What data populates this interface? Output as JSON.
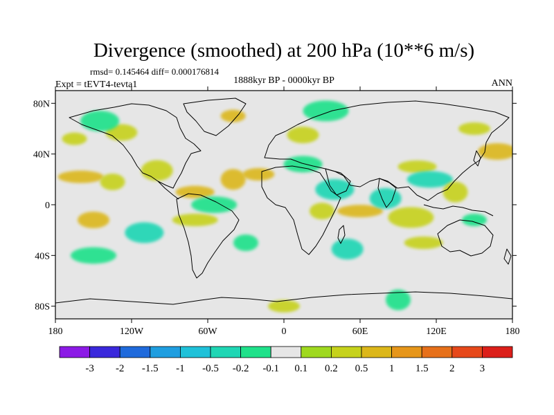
{
  "chart_data": {
    "type": "heatmap",
    "title": "Divergence (smoothed) at 200 hPa (10**6 m/s)",
    "stats_text": "rmsd= 0.145464  diff= 0.000176814",
    "left_label": "Expt = tEVT4-tevta1",
    "center_label": "1888kyr BP - 0000kyr BP",
    "right_label": "ANN",
    "x_range": [
      -180,
      180
    ],
    "y_range": [
      -90,
      90
    ],
    "x_ticks": [
      {
        "value": -180,
        "label": "180"
      },
      {
        "value": -120,
        "label": "120W"
      },
      {
        "value": -60,
        "label": "60W"
      },
      {
        "value": 0,
        "label": "0"
      },
      {
        "value": 60,
        "label": "60E"
      },
      {
        "value": 120,
        "label": "120E"
      },
      {
        "value": 180,
        "label": "180"
      }
    ],
    "y_ticks": [
      {
        "value": 80,
        "label": "80N"
      },
      {
        "value": 40,
        "label": "40N"
      },
      {
        "value": 0,
        "label": "0"
      },
      {
        "value": -40,
        "label": "40S"
      },
      {
        "value": -80,
        "label": "80S"
      }
    ],
    "colorbar": {
      "colors": [
        "#8c1ae6",
        "#3a28dc",
        "#1f6adc",
        "#1f9ee0",
        "#1fc1d9",
        "#1fd6b4",
        "#1fe18a",
        "#e6e6e6",
        "#9fd91f",
        "#c6d21c",
        "#dcb71a",
        "#e6961a",
        "#e6701a",
        "#e6481a",
        "#dc1f1a"
      ],
      "labels": [
        "-3",
        "-2",
        "-1.5",
        "-1",
        "-0.5",
        "-0.2",
        "-0.1",
        "0.1",
        "0.2",
        "0.5",
        "1",
        "1.5",
        "2",
        "3"
      ]
    },
    "anomalies": [
      {
        "lon": -165,
        "lat": 52,
        "value": 0.2
      },
      {
        "lon": -128,
        "lat": 57,
        "value": 0.2
      },
      {
        "lon": -145,
        "lat": 66,
        "value": -0.15
      },
      {
        "lon": -160,
        "lat": 22,
        "value": 0.5
      },
      {
        "lon": -135,
        "lat": 18,
        "value": 0.3
      },
      {
        "lon": -100,
        "lat": 27,
        "value": 0.2
      },
      {
        "lon": -70,
        "lat": 10,
        "value": 0.5
      },
      {
        "lon": -55,
        "lat": 0,
        "value": -0.2
      },
      {
        "lon": -40,
        "lat": 20,
        "value": 0.5
      },
      {
        "lon": -20,
        "lat": 24,
        "value": 0.5
      },
      {
        "lon": 15,
        "lat": 32,
        "value": -0.2
      },
      {
        "lon": 33,
        "lat": 74,
        "value": -0.2
      },
      {
        "lon": -40,
        "lat": 70,
        "value": 0.5
      },
      {
        "lon": 15,
        "lat": 55,
        "value": 0.2
      },
      {
        "lon": 40,
        "lat": 12,
        "value": -0.5
      },
      {
        "lon": 60,
        "lat": -5,
        "value": 0.5
      },
      {
        "lon": 30,
        "lat": -5,
        "value": 0.2
      },
      {
        "lon": 80,
        "lat": 5,
        "value": -0.5
      },
      {
        "lon": 105,
        "lat": 30,
        "value": 0.2
      },
      {
        "lon": 115,
        "lat": 20,
        "value": -0.3
      },
      {
        "lon": 135,
        "lat": 10,
        "value": 0.2
      },
      {
        "lon": 150,
        "lat": 60,
        "value": 0.3
      },
      {
        "lon": 168,
        "lat": 42,
        "value": 0.5
      },
      {
        "lon": 100,
        "lat": -10,
        "value": 0.3
      },
      {
        "lon": 150,
        "lat": -12,
        "value": -0.2
      },
      {
        "lon": -150,
        "lat": -12,
        "value": 0.5
      },
      {
        "lon": -110,
        "lat": -22,
        "value": -0.5
      },
      {
        "lon": -70,
        "lat": -12,
        "value": 0.2
      },
      {
        "lon": -30,
        "lat": -30,
        "value": -0.2
      },
      {
        "lon": 50,
        "lat": -35,
        "value": -0.5
      },
      {
        "lon": 110,
        "lat": -30,
        "value": 0.2
      },
      {
        "lon": -150,
        "lat": -40,
        "value": -0.2
      },
      {
        "lon": 90,
        "lat": -75,
        "value": -0.2
      },
      {
        "lon": 0,
        "lat": -80,
        "value": 0.2
      }
    ]
  }
}
